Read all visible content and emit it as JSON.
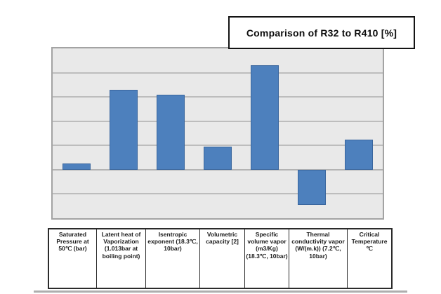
{
  "title_box": {
    "label": "Comparison of R32 to R410 [%]"
  },
  "chart_data": {
    "type": "bar",
    "title": "Comparison of R32 to R410 [%]",
    "unit": "%",
    "categories": [
      "Saturated Pressure at 50℃ (bar)",
      "Latent heat of Vaporization (1.013bar at boiling point)",
      "Isentropic exponent (18.3℃, 10bar)",
      "Volumetric capacity [2]",
      "Specific volume vapor (m3/Kg) (18.3℃, 10bar)",
      "Thermal conductivity vapor (W/(m.k)) (7.2℃, 10bar)",
      "Critical Temperature ℃"
    ],
    "values": [
      2.5,
      33,
      31,
      9.5,
      43,
      -14.5,
      12.5
    ],
    "ylim": [
      -20,
      50
    ],
    "gridline_step": 10,
    "grid": true,
    "legend": "none",
    "y_axis_tick_labels_visible": false,
    "xlabel": "",
    "ylabel": "",
    "colors": {
      "bar_fill": "#4d80bd",
      "bar_border": "#39669e",
      "plot_background": "#e9e9e9",
      "gridline": "#bdbdbd",
      "plot_border": "#a3a3a3",
      "title_border": "#141414"
    }
  }
}
